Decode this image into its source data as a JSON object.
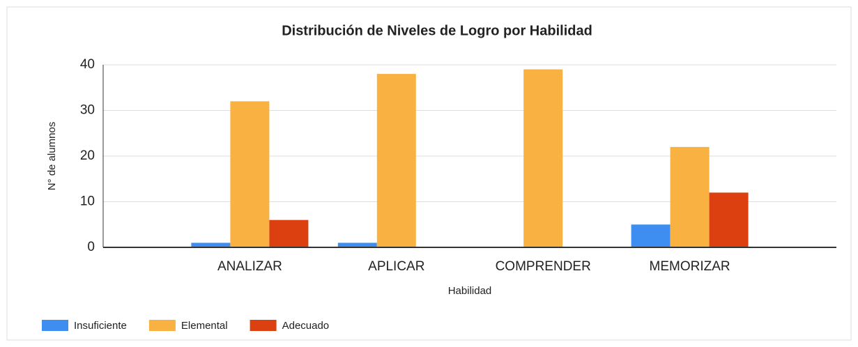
{
  "chart_data": {
    "type": "bar",
    "title": "Distribución de Niveles de Logro por Habilidad",
    "x_label": "Habilidad",
    "y_label": "N° de alumnos",
    "categories": [
      "ANALIZAR",
      "APLICAR",
      "COMPRENDER",
      "MEMORIZAR"
    ],
    "series": [
      {
        "name": "Insuficiente",
        "color": "#3d8ef0",
        "values": [
          1,
          1,
          0,
          5
        ]
      },
      {
        "name": "Elemental",
        "color": "#f9b142",
        "values": [
          32,
          38,
          39,
          22
        ]
      },
      {
        "name": "Adecuado",
        "color": "#dc4010",
        "values": [
          6,
          0,
          0,
          12
        ]
      }
    ],
    "ylim": [
      0,
      40
    ],
    "yticks": [
      0,
      10,
      20,
      30,
      40
    ],
    "grid": true,
    "legend": "bottom-left"
  }
}
